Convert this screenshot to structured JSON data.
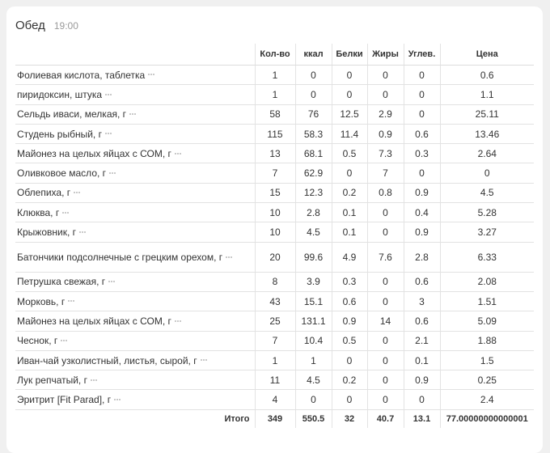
{
  "meal": {
    "title": "Обед",
    "time": "19:00"
  },
  "columns": {
    "qty": "Кол-во",
    "kcal": "ккал",
    "protein": "Белки",
    "fat": "Жиры",
    "carbs": "Углев.",
    "price": "Цена"
  },
  "rows": [
    {
      "name": "Фолиевая кислота, таблетка",
      "qty": "1",
      "kcal": "0",
      "protein": "0",
      "fat": "0",
      "carbs": "0",
      "price": "0.6"
    },
    {
      "name": "пиридоксин, штука",
      "qty": "1",
      "kcal": "0",
      "protein": "0",
      "fat": "0",
      "carbs": "0",
      "price": "1.1"
    },
    {
      "name": "Сельдь иваси, мелкая, г",
      "qty": "58",
      "kcal": "76",
      "protein": "12.5",
      "fat": "2.9",
      "carbs": "0",
      "price": "25.11"
    },
    {
      "name": "Студень рыбный, г",
      "qty": "115",
      "kcal": "58.3",
      "protein": "11.4",
      "fat": "0.9",
      "carbs": "0.6",
      "price": "13.46"
    },
    {
      "name": "Майонез на целых яйцах с СОМ, г",
      "qty": "13",
      "kcal": "68.1",
      "protein": "0.5",
      "fat": "7.3",
      "carbs": "0.3",
      "price": "2.64"
    },
    {
      "name": "Оливковое масло, г",
      "qty": "7",
      "kcal": "62.9",
      "protein": "0",
      "fat": "7",
      "carbs": "0",
      "price": "0"
    },
    {
      "name": "Облепиха, г",
      "qty": "15",
      "kcal": "12.3",
      "protein": "0.2",
      "fat": "0.8",
      "carbs": "0.9",
      "price": "4.5"
    },
    {
      "name": "Клюква, г",
      "qty": "10",
      "kcal": "2.8",
      "protein": "0.1",
      "fat": "0",
      "carbs": "0.4",
      "price": "5.28"
    },
    {
      "name": "Крыжовник, г",
      "qty": "10",
      "kcal": "4.5",
      "protein": "0.1",
      "fat": "0",
      "carbs": "0.9",
      "price": "3.27"
    },
    {
      "name": "Батончики подсолнечные с грецким орехом, г",
      "qty": "20",
      "kcal": "99.6",
      "protein": "4.9",
      "fat": "7.6",
      "carbs": "2.8",
      "price": "6.33"
    },
    {
      "name": "Петрушка свежая, г",
      "qty": "8",
      "kcal": "3.9",
      "protein": "0.3",
      "fat": "0",
      "carbs": "0.6",
      "price": "2.08"
    },
    {
      "name": "Морковь, г",
      "qty": "43",
      "kcal": "15.1",
      "protein": "0.6",
      "fat": "0",
      "carbs": "3",
      "price": "1.51"
    },
    {
      "name": "Майонез на целых яйцах с СОМ, г",
      "qty": "25",
      "kcal": "131.1",
      "protein": "0.9",
      "fat": "14",
      "carbs": "0.6",
      "price": "5.09"
    },
    {
      "name": "Чеснок, г",
      "qty": "7",
      "kcal": "10.4",
      "protein": "0.5",
      "fat": "0",
      "carbs": "2.1",
      "price": "1.88"
    },
    {
      "name": "Иван-чай узколистный, листья, сырой, г",
      "qty": "1",
      "kcal": "1",
      "protein": "0",
      "fat": "0",
      "carbs": "0.1",
      "price": "1.5"
    },
    {
      "name": "Лук репчатый, г",
      "qty": "11",
      "kcal": "4.5",
      "protein": "0.2",
      "fat": "0",
      "carbs": "0.9",
      "price": "0.25"
    },
    {
      "name": "Эритрит [Fit Parad], г",
      "qty": "4",
      "kcal": "0",
      "protein": "0",
      "fat": "0",
      "carbs": "0",
      "price": "2.4"
    }
  ],
  "total": {
    "label": "Итого",
    "qty": "349",
    "kcal": "550.5",
    "protein": "32",
    "fat": "40.7",
    "carbs": "13.1",
    "price": "77.00000000000001"
  },
  "icons": {
    "row_menu": "more-dots-icon",
    "color": "#b8b8b8"
  }
}
